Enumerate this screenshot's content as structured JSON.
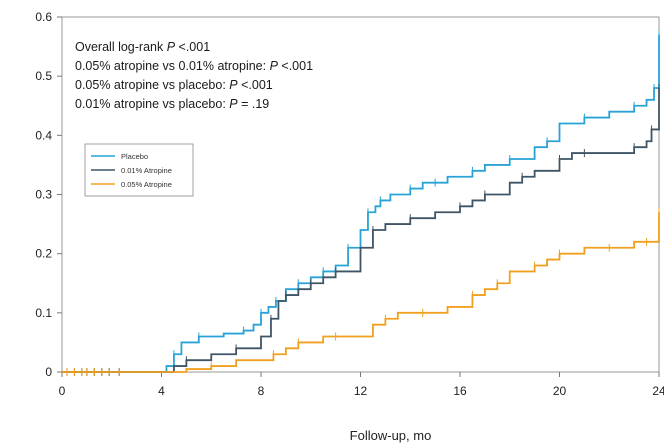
{
  "chart_data": {
    "type": "line",
    "step": true,
    "title": "",
    "xlabel": "Follow-up, mo",
    "ylabel": "",
    "xlim": [
      0,
      24
    ],
    "ylim": [
      0,
      0.6
    ],
    "xticks": [
      0,
      4,
      8,
      12,
      16,
      20,
      24
    ],
    "xtick_labels": [
      "0",
      "4",
      "8",
      "12",
      "16",
      "20",
      "24"
    ],
    "yticks": [
      0,
      0.1,
      0.2,
      0.3,
      0.4,
      0.5,
      0.6
    ],
    "ytick_labels": [
      "0",
      "0.1",
      "0.2",
      "0.3",
      "0.4",
      "0.5",
      "0.6"
    ],
    "grid": false,
    "legend_position": "upper-left",
    "annotations": [
      [
        {
          "t": "Overall log-rank ",
          "i": false
        },
        {
          "t": "P",
          "i": true
        },
        {
          "t": " <.001",
          "i": false
        }
      ],
      [
        {
          "t": "0.05% atropine vs 0.01% atropine: ",
          "i": false
        },
        {
          "t": "P",
          "i": true
        },
        {
          "t": " <.001",
          "i": false
        }
      ],
      [
        {
          "t": "0.05% atropine vs placebo: ",
          "i": false
        },
        {
          "t": "P",
          "i": true
        },
        {
          "t": " <.001",
          "i": false
        }
      ],
      [
        {
          "t": "0.01% atropine vs placebo: ",
          "i": false
        },
        {
          "t": "P",
          "i": true
        },
        {
          "t": " = .19",
          "i": false
        }
      ]
    ],
    "series": [
      {
        "name": "Placebo",
        "color": "#29a3d6",
        "x": [
          0,
          4.2,
          4.5,
          4.8,
          5.5,
          6.5,
          7.3,
          7.7,
          8.0,
          8.3,
          8.6,
          9.0,
          9.5,
          10.0,
          10.5,
          11.0,
          11.5,
          12.0,
          12.3,
          12.6,
          12.8,
          13.2,
          14.0,
          14.5,
          15.0,
          15.5,
          16.5,
          17.0,
          18.0,
          19.0,
          19.5,
          20.0,
          21.0,
          22.0,
          23.0,
          23.5,
          23.8,
          24.0,
          24.0
        ],
        "y": [
          0,
          0.01,
          0.03,
          0.05,
          0.06,
          0.065,
          0.07,
          0.08,
          0.1,
          0.11,
          0.12,
          0.14,
          0.15,
          0.16,
          0.17,
          0.18,
          0.21,
          0.24,
          0.27,
          0.28,
          0.29,
          0.3,
          0.31,
          0.32,
          0.32,
          0.33,
          0.34,
          0.35,
          0.36,
          0.38,
          0.39,
          0.42,
          0.43,
          0.44,
          0.45,
          0.46,
          0.48,
          0.5,
          0.57
        ]
      },
      {
        "name": "0.01% Atropine",
        "color": "#3f5566",
        "x": [
          0,
          4.5,
          5.0,
          6.0,
          7.0,
          8.0,
          8.4,
          8.7,
          9.0,
          9.5,
          10.0,
          10.5,
          11.0,
          12.0,
          12.5,
          13.0,
          14.0,
          15.0,
          16.0,
          16.5,
          17.0,
          18.0,
          18.5,
          19.0,
          20.0,
          20.5,
          21.0,
          22.0,
          23.0,
          23.5,
          23.7,
          24.0,
          24.0
        ],
        "y": [
          0,
          0.01,
          0.02,
          0.03,
          0.04,
          0.06,
          0.09,
          0.12,
          0.13,
          0.14,
          0.15,
          0.16,
          0.17,
          0.21,
          0.24,
          0.25,
          0.26,
          0.27,
          0.28,
          0.29,
          0.3,
          0.32,
          0.33,
          0.34,
          0.36,
          0.37,
          0.37,
          0.37,
          0.38,
          0.39,
          0.41,
          0.43,
          0.48
        ]
      },
      {
        "name": "0.05% Atropine",
        "color": "#f0a01e",
        "x": [
          0,
          5.0,
          6.0,
          7.0,
          8.5,
          9.0,
          9.5,
          10.5,
          11.0,
          12.5,
          13.0,
          13.5,
          14.5,
          15.5,
          16.5,
          17.0,
          17.5,
          18.0,
          19.0,
          19.5,
          20.0,
          21.0,
          22.0,
          23.0,
          23.5,
          24.0,
          24.0
        ],
        "y": [
          0,
          0.005,
          0.01,
          0.02,
          0.03,
          0.04,
          0.05,
          0.06,
          0.06,
          0.08,
          0.09,
          0.1,
          0.1,
          0.11,
          0.13,
          0.14,
          0.15,
          0.17,
          0.18,
          0.19,
          0.2,
          0.21,
          0.21,
          0.22,
          0.22,
          0.23,
          0.27
        ]
      }
    ]
  }
}
